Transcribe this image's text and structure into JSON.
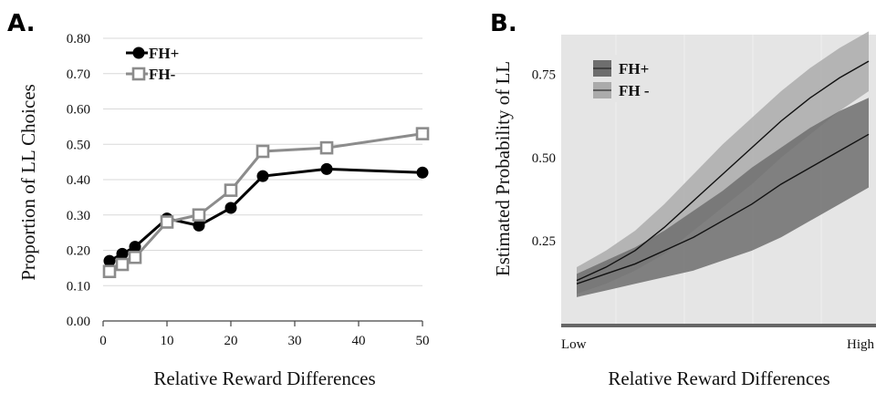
{
  "chart_data": [
    {
      "panel": "A.",
      "type": "line",
      "xlabel": "Relative Reward Differences",
      "ylabel": "Proportion of LL Choices",
      "xlim": [
        0,
        50
      ],
      "ylim": [
        0.0,
        0.8
      ],
      "xticks": [
        "0",
        "10",
        "20",
        "30",
        "40",
        "50"
      ],
      "yticks": [
        "0.00",
        "0.10",
        "0.20",
        "0.30",
        "0.40",
        "0.50",
        "0.60",
        "0.70",
        "0.80"
      ],
      "grid": "horizontal",
      "legend_position": "top-left",
      "x": [
        1,
        3,
        5,
        10,
        15,
        20,
        25,
        35,
        50
      ],
      "series": [
        {
          "name": "FH+",
          "color": "#000000",
          "marker": "filled-circle",
          "values": [
            0.17,
            0.19,
            0.21,
            0.29,
            0.27,
            0.32,
            0.41,
            0.43,
            0.42
          ]
        },
        {
          "name": "FH-",
          "color": "#8c8c8c",
          "marker": "open-square",
          "values": [
            0.14,
            0.16,
            0.18,
            0.28,
            0.3,
            0.37,
            0.48,
            0.49,
            0.53
          ]
        }
      ]
    },
    {
      "panel": "B.",
      "type": "area",
      "xlabel": "Relative Reward Differences",
      "ylabel": "Estimated Probability of LL",
      "xticks": [
        "Low",
        "High"
      ],
      "yticks": [
        "0.25",
        "0.50",
        "0.75"
      ],
      "ylim": [
        0.0,
        0.87
      ],
      "legend_position": "top-left",
      "background": "#e5e5e5",
      "x": [
        0,
        0.1,
        0.2,
        0.3,
        0.4,
        0.5,
        0.6,
        0.7,
        0.8,
        0.9,
        1.0
      ],
      "series": [
        {
          "name": "FH+",
          "color": "#6e6e6e",
          "values": [
            0.12,
            0.15,
            0.18,
            0.22,
            0.26,
            0.31,
            0.36,
            0.42,
            0.47,
            0.52,
            0.57
          ],
          "lower": [
            0.08,
            0.1,
            0.12,
            0.14,
            0.16,
            0.19,
            0.22,
            0.26,
            0.31,
            0.36,
            0.41
          ],
          "upper": [
            0.15,
            0.19,
            0.23,
            0.28,
            0.34,
            0.4,
            0.47,
            0.53,
            0.59,
            0.64,
            0.68
          ]
        },
        {
          "name": "FH -",
          "color": "#ababab",
          "values": [
            0.13,
            0.17,
            0.22,
            0.29,
            0.37,
            0.45,
            0.53,
            0.61,
            0.68,
            0.74,
            0.79
          ],
          "lower": [
            0.09,
            0.12,
            0.16,
            0.21,
            0.28,
            0.35,
            0.42,
            0.5,
            0.57,
            0.64,
            0.7
          ],
          "upper": [
            0.17,
            0.22,
            0.28,
            0.36,
            0.45,
            0.54,
            0.62,
            0.7,
            0.77,
            0.83,
            0.88
          ]
        }
      ]
    }
  ]
}
